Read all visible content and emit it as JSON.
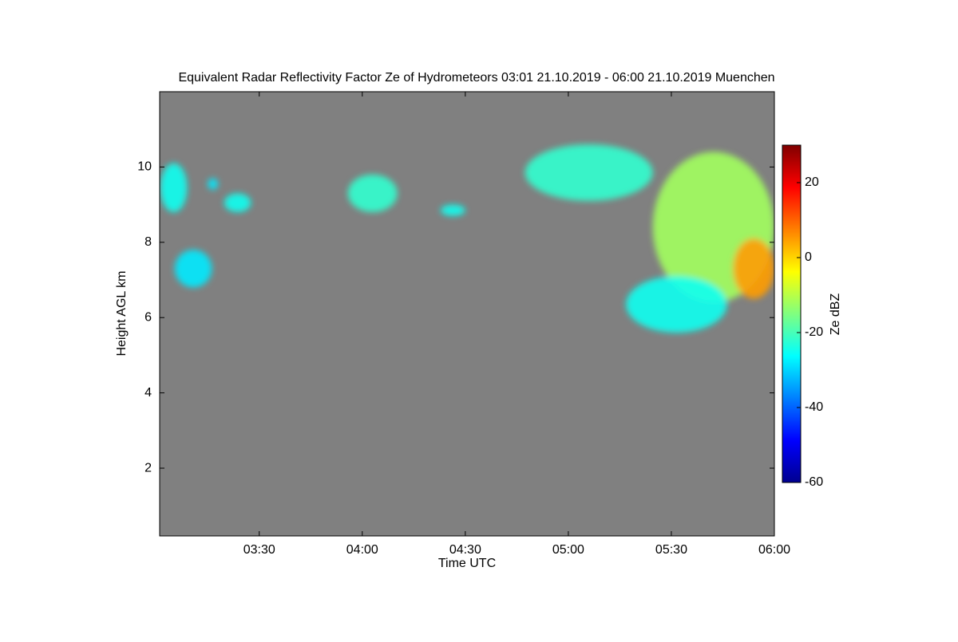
{
  "chart_data": {
    "type": "radar-heatmap",
    "title": "Equivalent Radar Reflectivity Factor Ze of Hydrometeors   03:01 21.10.2019 - 06:00 21.10.2019 Muenchen",
    "xlabel": "Time UTC",
    "ylabel": "Height AGL km",
    "colorbar_label": "Ze dBZ",
    "colormap": "jet",
    "background": "#808080",
    "xlim": [
      3.0167,
      6.0
    ],
    "xticks": [
      {
        "value": 3.5,
        "label": "03:30"
      },
      {
        "value": 4.0,
        "label": "04:00"
      },
      {
        "value": 4.5,
        "label": "04:30"
      },
      {
        "value": 5.0,
        "label": "05:00"
      },
      {
        "value": 5.5,
        "label": "05:30"
      },
      {
        "value": 6.0,
        "label": "06:00"
      }
    ],
    "ylim": [
      0.2,
      12
    ],
    "yticks": [
      2,
      4,
      6,
      8,
      10
    ],
    "zlim": [
      -60,
      30
    ],
    "zticks": [
      20,
      0,
      -20,
      -40,
      -60
    ],
    "echoes": [
      {
        "x": [
          3.02,
          3.15
        ],
        "y": [
          8.8,
          10.1
        ],
        "z": -25
      },
      {
        "x": [
          3.25,
          3.3
        ],
        "y": [
          9.4,
          9.7
        ],
        "z": -28
      },
      {
        "x": [
          3.33,
          3.46
        ],
        "y": [
          8.8,
          9.3
        ],
        "z": -25
      },
      {
        "x": [
          3.93,
          4.17
        ],
        "y": [
          8.8,
          9.8
        ],
        "z": -22
      },
      {
        "x": [
          4.38,
          4.5
        ],
        "y": [
          8.7,
          9.0
        ],
        "z": -25
      },
      {
        "x": [
          4.79,
          5.41
        ],
        "y": [
          9.1,
          10.6
        ],
        "z": -22
      },
      {
        "x": [
          5.41,
          6.0
        ],
        "y": [
          6.4,
          10.4
        ],
        "z": -12
      },
      {
        "x": [
          5.8,
          6.0
        ],
        "y": [
          6.5,
          8.1
        ],
        "z": 5
      },
      {
        "x": [
          5.28,
          5.77
        ],
        "y": [
          5.6,
          7.1
        ],
        "z": -25
      },
      {
        "x": [
          3.09,
          3.27
        ],
        "y": [
          6.8,
          7.8
        ],
        "z": -28
      }
    ]
  }
}
